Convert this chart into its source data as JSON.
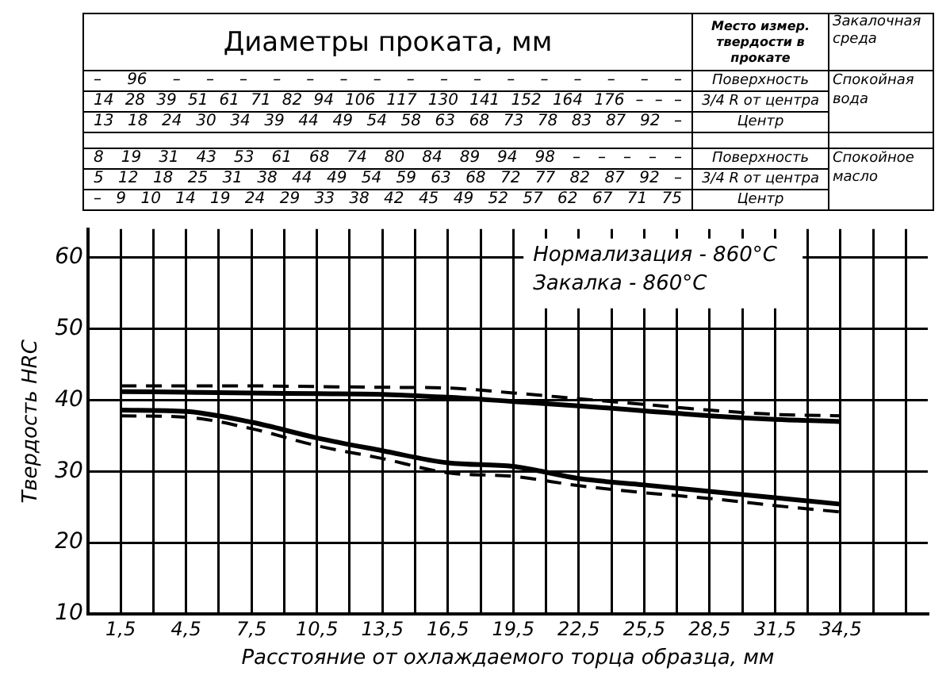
{
  "chart_data": {
    "type": "line",
    "xlabel": "Расстояние от охлаждаемого торца образца, мм",
    "ylabel": "Твердость HRC",
    "annotations": [
      "Диаметры проката, мм",
      "Место измер. твердости в прокате",
      "Закалочная среда",
      "– 96 – – – – – – – – – – – – – – – –",
      "14 28 39 51 61 71 82 94 106 117 130 141 152 164 176 – – –",
      "13 18 24 30 34 39 44 49 54 58 63 68 73 78 83 87 92 –",
      "Поверхность",
      "3/4 R от центра",
      "Центр",
      "Спокойная вода",
      "8 19 31 43 53 61 68 74 80 84 89 94 98 – – – – –",
      "5 12 18 25 31 38 44 49 54 59 63 68 72 77 82 87 92 –",
      "– 9 10 14 19 24 29 33 38 42 45 49 52 57 62 67 71 75",
      "Поверхность",
      "3/4 R от центра",
      "Центр",
      "Спокойное масло",
      "Нормализация - 860°C",
      "Закалка - 860°C"
    ],
    "x": [
      1.5,
      4.5,
      7.5,
      10.5,
      13.5,
      16.5,
      19.5,
      22.5,
      25.5,
      28.5,
      31.5,
      34.5
    ],
    "series": [
      {
        "color": "#000000",
        "line_style": "solid",
        "values": [
          41.2,
          41.1,
          41,
          40.9,
          40.8,
          40.4,
          39.8,
          39.2,
          38.5,
          37.8,
          37.3,
          37
        ]
      },
      {
        "color": "#000000",
        "line_style": "dashed",
        "values": [
          42,
          42,
          42,
          41.9,
          41.8,
          41.7,
          41,
          40.2,
          39.4,
          38.6,
          38,
          37.8
        ]
      },
      {
        "color": "#000000",
        "line_style": "solid",
        "values": [
          38.6,
          38.4,
          36.9,
          34.7,
          32.9,
          31.2,
          30.7,
          29,
          28.1,
          27.2,
          26.3,
          25.4
        ]
      },
      {
        "color": "#000000",
        "line_style": "dashed",
        "values": [
          37.8,
          37.6,
          36,
          33.6,
          31.8,
          29.8,
          29.3,
          28,
          27,
          26.2,
          25.2,
          24.3
        ]
      }
    ],
    "xlim": [
      0,
      38.5
    ],
    "xticks": [
      {
        "value": 1.5,
        "label": "1,5"
      },
      {
        "value": 3,
        "label": null
      },
      {
        "value": 4.5,
        "label": "4,5"
      },
      {
        "value": 6,
        "label": null
      },
      {
        "value": 7.5,
        "label": "7,5"
      },
      {
        "value": 9,
        "label": null
      },
      {
        "value": 10.5,
        "label": "10,5"
      },
      {
        "value": 12,
        "label": null
      },
      {
        "value": 13.5,
        "label": "13,5"
      },
      {
        "value": 15,
        "label": null
      },
      {
        "value": 16.5,
        "label": "16,5"
      },
      {
        "value": 18,
        "label": null
      },
      {
        "value": 19.5,
        "label": "19,5"
      },
      {
        "value": 21,
        "label": null
      },
      {
        "value": 22.5,
        "label": "22,5"
      },
      {
        "value": 24,
        "label": null
      },
      {
        "value": 25.5,
        "label": "25,5"
      },
      {
        "value": 27,
        "label": null
      },
      {
        "value": 28.5,
        "label": "28,5"
      },
      {
        "value": 30,
        "label": null
      },
      {
        "value": 31.5,
        "label": "31,5"
      },
      {
        "value": 33,
        "label": null
      },
      {
        "value": 34.5,
        "label": "34,5"
      },
      {
        "value": 36,
        "label": null
      },
      {
        "value": 37.5,
        "label": null
      }
    ],
    "ylim": [
      10,
      64
    ],
    "yticks": [
      10,
      20,
      30,
      40,
      50,
      60
    ],
    "grid": true,
    "legend": false
  }
}
